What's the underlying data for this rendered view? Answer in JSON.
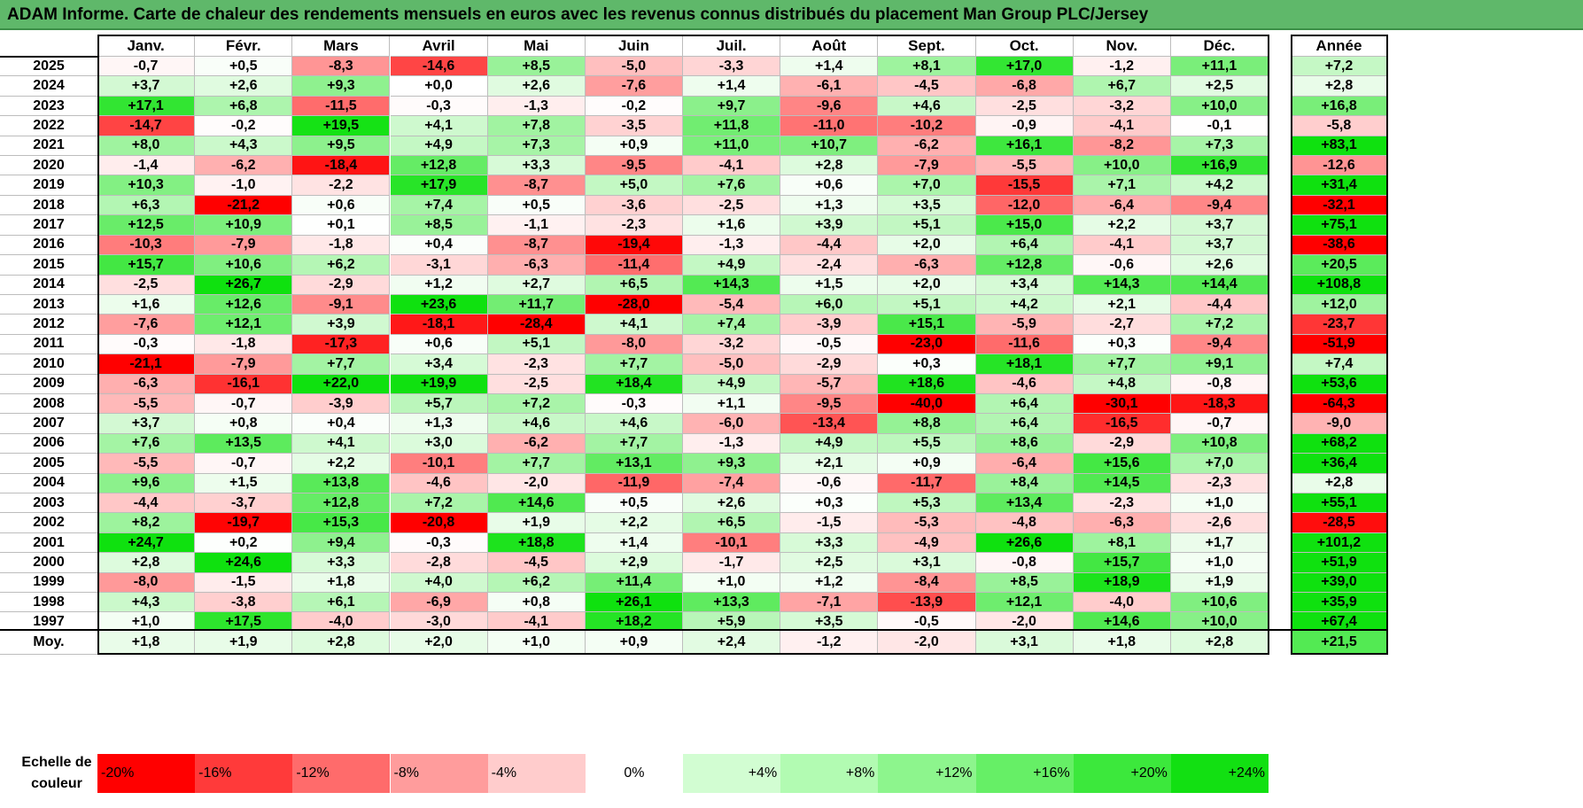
{
  "title": "ADAM Informe. Carte de chaleur des rendements mensuels en euros avec les revenus connus distribués du placement Man Group PLC/Jersey",
  "chart_data": {
    "type": "heatmap",
    "title": "ADAM Informe. Carte de chaleur des rendements mensuels en euros avec les revenus connus distribués du placement Man Group PLC/Jersey",
    "columns": [
      "Janv.",
      "Févr.",
      "Mars",
      "Avril",
      "Mai",
      "Juin",
      "Juil.",
      "Août",
      "Sept.",
      "Oct.",
      "Nov.",
      "Déc."
    ],
    "year_column": "Année",
    "rows": [
      {
        "year": "2025",
        "values": [
          "-0,7",
          "+0,5",
          "-8,3",
          "-14,6",
          "+8,5",
          "-5,0",
          "-3,3",
          "+1,4",
          "+8,1",
          "+17,0",
          "-1,2",
          "+11,1"
        ],
        "annual": "+7,2"
      },
      {
        "year": "2024",
        "values": [
          "+3,7",
          "+2,6",
          "+9,3",
          "+0,0",
          "+2,6",
          "-7,6",
          "+1,4",
          "-6,1",
          "-4,5",
          "-6,8",
          "+6,7",
          "+2,5"
        ],
        "annual": "+2,8"
      },
      {
        "year": "2023",
        "values": [
          "+17,1",
          "+6,8",
          "-11,5",
          "-0,3",
          "-1,3",
          "-0,2",
          "+9,7",
          "-9,6",
          "+4,6",
          "-2,5",
          "-3,2",
          "+10,0"
        ],
        "annual": "+16,8"
      },
      {
        "year": "2022",
        "values": [
          "-14,7",
          "-0,2",
          "+19,5",
          "+4,1",
          "+7,8",
          "-3,5",
          "+11,8",
          "-11,0",
          "-10,2",
          "-0,9",
          "-4,1",
          "-0,1"
        ],
        "annual": "-5,8"
      },
      {
        "year": "2021",
        "values": [
          "+8,0",
          "+4,3",
          "+9,5",
          "+4,9",
          "+7,3",
          "+0,9",
          "+11,0",
          "+10,7",
          "-6,2",
          "+16,1",
          "-8,2",
          "+7,3"
        ],
        "annual": "+83,1"
      },
      {
        "year": "2020",
        "values": [
          "-1,4",
          "-6,2",
          "-18,4",
          "+12,8",
          "+3,3",
          "-9,5",
          "-4,1",
          "+2,8",
          "-7,9",
          "-5,5",
          "+10,0",
          "+16,9"
        ],
        "annual": "-12,6"
      },
      {
        "year": "2019",
        "values": [
          "+10,3",
          "-1,0",
          "-2,2",
          "+17,9",
          "-8,7",
          "+5,0",
          "+7,6",
          "+0,6",
          "+7,0",
          "-15,5",
          "+7,1",
          "+4,2"
        ],
        "annual": "+31,4"
      },
      {
        "year": "2018",
        "values": [
          "+6,3",
          "-21,2",
          "+0,6",
          "+7,4",
          "+0,5",
          "-3,6",
          "-2,5",
          "+1,3",
          "+3,5",
          "-12,0",
          "-6,4",
          "-9,4"
        ],
        "annual": "-32,1"
      },
      {
        "year": "2017",
        "values": [
          "+12,5",
          "+10,9",
          "+0,1",
          "+8,5",
          "-1,1",
          "-2,3",
          "+1,6",
          "+3,9",
          "+5,1",
          "+15,0",
          "+2,2",
          "+3,7"
        ],
        "annual": "+75,1"
      },
      {
        "year": "2016",
        "values": [
          "-10,3",
          "-7,9",
          "-1,8",
          "+0,4",
          "-8,7",
          "-19,4",
          "-1,3",
          "-4,4",
          "+2,0",
          "+6,4",
          "-4,1",
          "+3,7"
        ],
        "annual": "-38,6"
      },
      {
        "year": "2015",
        "values": [
          "+15,7",
          "+10,6",
          "+6,2",
          "-3,1",
          "-6,3",
          "-11,4",
          "+4,9",
          "-2,4",
          "-6,3",
          "+12,8",
          "-0,6",
          "+2,6"
        ],
        "annual": "+20,5"
      },
      {
        "year": "2014",
        "values": [
          "-2,5",
          "+26,7",
          "-2,9",
          "+1,2",
          "+2,7",
          "+6,5",
          "+14,3",
          "+1,5",
          "+2,0",
          "+3,4",
          "+14,3",
          "+14,4"
        ],
        "annual": "+108,8"
      },
      {
        "year": "2013",
        "values": [
          "+1,6",
          "+12,6",
          "-9,1",
          "+23,6",
          "+11,7",
          "-28,0",
          "-5,4",
          "+6,0",
          "+5,1",
          "+4,2",
          "+2,1",
          "-4,4"
        ],
        "annual": "+12,0"
      },
      {
        "year": "2012",
        "values": [
          "-7,6",
          "+12,1",
          "+3,9",
          "-18,1",
          "-28,4",
          "+4,1",
          "+7,4",
          "-3,9",
          "+15,1",
          "-5,9",
          "-2,7",
          "+7,2"
        ],
        "annual": "-23,7"
      },
      {
        "year": "2011",
        "values": [
          "-0,3",
          "-1,8",
          "-17,3",
          "+0,6",
          "+5,1",
          "-8,0",
          "-3,2",
          "-0,5",
          "-23,0",
          "-11,6",
          "+0,3",
          "-9,4"
        ],
        "annual": "-51,9"
      },
      {
        "year": "2010",
        "values": [
          "-21,1",
          "-7,9",
          "+7,7",
          "+3,4",
          "-2,3",
          "+7,7",
          "-5,0",
          "-2,9",
          "+0,3",
          "+18,1",
          "+7,7",
          "+9,1"
        ],
        "annual": "+7,4"
      },
      {
        "year": "2009",
        "values": [
          "-6,3",
          "-16,1",
          "+22,0",
          "+19,9",
          "-2,5",
          "+18,4",
          "+4,9",
          "-5,7",
          "+18,6",
          "-4,6",
          "+4,8",
          "-0,8"
        ],
        "annual": "+53,6"
      },
      {
        "year": "2008",
        "values": [
          "-5,5",
          "-0,7",
          "-3,9",
          "+5,7",
          "+7,2",
          "-0,3",
          "+1,1",
          "-9,5",
          "-40,0",
          "+6,4",
          "-30,1",
          "-18,3"
        ],
        "annual": "-64,3"
      },
      {
        "year": "2007",
        "values": [
          "+3,7",
          "+0,8",
          "+0,4",
          "+1,3",
          "+4,6",
          "+4,6",
          "-6,0",
          "-13,4",
          "+8,8",
          "+6,4",
          "-16,5",
          "-0,7"
        ],
        "annual": "-9,0"
      },
      {
        "year": "2006",
        "values": [
          "+7,6",
          "+13,5",
          "+4,1",
          "+3,0",
          "-6,2",
          "+7,7",
          "-1,3",
          "+4,9",
          "+5,5",
          "+8,6",
          "-2,9",
          "+10,8"
        ],
        "annual": "+68,2"
      },
      {
        "year": "2005",
        "values": [
          "-5,5",
          "-0,7",
          "+2,2",
          "-10,1",
          "+7,7",
          "+13,1",
          "+9,3",
          "+2,1",
          "+0,9",
          "-6,4",
          "+15,6",
          "+7,0"
        ],
        "annual": "+36,4"
      },
      {
        "year": "2004",
        "values": [
          "+9,6",
          "+1,5",
          "+13,8",
          "-4,6",
          "-2,0",
          "-11,9",
          "-7,4",
          "-0,6",
          "-11,7",
          "+8,4",
          "+14,5",
          "-2,3"
        ],
        "annual": "+2,8"
      },
      {
        "year": "2003",
        "values": [
          "-4,4",
          "-3,7",
          "+12,8",
          "+7,2",
          "+14,6",
          "+0,5",
          "+2,6",
          "+0,3",
          "+5,3",
          "+13,4",
          "-2,3",
          "+1,0"
        ],
        "annual": "+55,1"
      },
      {
        "year": "2002",
        "values": [
          "+8,2",
          "-19,7",
          "+15,3",
          "-20,8",
          "+1,9",
          "+2,2",
          "+6,5",
          "-1,5",
          "-5,3",
          "-4,8",
          "-6,3",
          "-2,6"
        ],
        "annual": "-28,5"
      },
      {
        "year": "2001",
        "values": [
          "+24,7",
          "+0,2",
          "+9,4",
          "-0,3",
          "+18,8",
          "+1,4",
          "-10,1",
          "+3,3",
          "-4,9",
          "+26,6",
          "+8,1",
          "+1,7"
        ],
        "annual": "+101,2"
      },
      {
        "year": "2000",
        "values": [
          "+2,8",
          "+24,6",
          "+3,3",
          "-2,8",
          "-4,5",
          "+2,9",
          "-1,7",
          "+2,5",
          "+3,1",
          "-0,8",
          "+15,7",
          "+1,0"
        ],
        "annual": "+51,9"
      },
      {
        "year": "1999",
        "values": [
          "-8,0",
          "-1,5",
          "+1,8",
          "+4,0",
          "+6,2",
          "+11,4",
          "+1,0",
          "+1,2",
          "-8,4",
          "+8,5",
          "+18,9",
          "+1,9"
        ],
        "annual": "+39,0"
      },
      {
        "year": "1998",
        "values": [
          "+4,3",
          "-3,8",
          "+6,1",
          "-6,9",
          "+0,8",
          "+26,1",
          "+13,3",
          "-7,1",
          "-13,9",
          "+12,1",
          "-4,0",
          "+10,6"
        ],
        "annual": "+35,9"
      },
      {
        "year": "1997",
        "values": [
          "+1,0",
          "+17,5",
          "-4,0",
          "-3,0",
          "-4,1",
          "+18,2",
          "+5,9",
          "+3,5",
          "-0,5",
          "-2,0",
          "+14,6",
          "+10,0"
        ],
        "annual": "+67,4"
      }
    ],
    "average": {
      "label": "Moy.",
      "values": [
        "+1,8",
        "+1,9",
        "+2,8",
        "+2,0",
        "+1,0",
        "+0,9",
        "+2,4",
        "-1,2",
        "-2,0",
        "+3,1",
        "+1,8",
        "+2,8"
      ],
      "annual": "+21,5"
    },
    "legend": {
      "label": "Echelle de couleur",
      "steps": [
        {
          "text": "-20%",
          "align": "left",
          "color": "#ff0000"
        },
        {
          "text": "-16%",
          "align": "left",
          "color": "#ff3a3a"
        },
        {
          "text": "-12%",
          "align": "left",
          "color": "#ff6b6b"
        },
        {
          "text": "-8%",
          "align": "left",
          "color": "#ff9c9c"
        },
        {
          "text": "-4%",
          "align": "left",
          "color": "#ffcccc"
        },
        {
          "text": "0%",
          "align": "center",
          "color": "#ffffff"
        },
        {
          "text": "+4%",
          "align": "right",
          "color": "#d2fdd2"
        },
        {
          "text": "+8%",
          "align": "right",
          "color": "#b2fbb2"
        },
        {
          "text": "+12%",
          "align": "right",
          "color": "#8df58d"
        },
        {
          "text": "+16%",
          "align": "right",
          "color": "#66ef66"
        },
        {
          "text": "+20%",
          "align": "right",
          "color": "#3ce83c"
        },
        {
          "text": "+24%",
          "align": "right",
          "color": "#12e012"
        }
      ]
    }
  }
}
